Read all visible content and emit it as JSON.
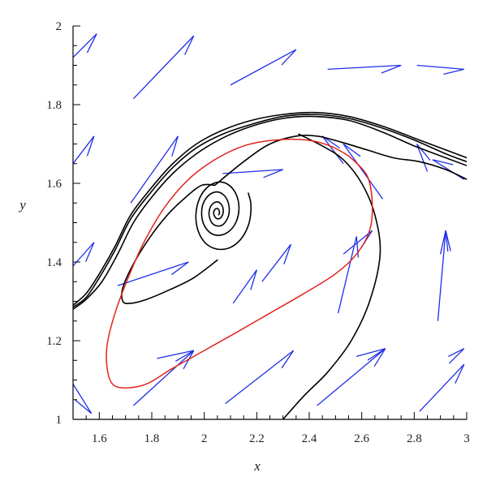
{
  "chart_data": {
    "type": "line",
    "title": "",
    "xlabel": "x",
    "ylabel": "y",
    "xlim": [
      1.5,
      3.0
    ],
    "ylim": [
      1.0,
      2.0
    ],
    "x_ticks": [
      "1.6",
      "1.8",
      "2",
      "2.2",
      "2.4",
      "2.6",
      "2.8",
      "3"
    ],
    "y_ticks": [
      "1",
      "1.2",
      "1.4",
      "1.6",
      "1.8",
      "2"
    ],
    "grid": false,
    "legend": "none",
    "colors": {
      "axis": "#000000",
      "trajectory": "#000000",
      "limit_cycle": "#e0241b",
      "vector_field": "#1f2ee8"
    },
    "series": [
      {
        "role": "trajectory",
        "points": [
          [
            1.5,
            1.29
          ],
          [
            1.55,
            1.32
          ],
          [
            1.6,
            1.37
          ],
          [
            1.66,
            1.44
          ],
          [
            1.72,
            1.52
          ],
          [
            1.8,
            1.59
          ],
          [
            1.88,
            1.65
          ],
          [
            1.97,
            1.7
          ],
          [
            2.07,
            1.735
          ],
          [
            2.18,
            1.76
          ],
          [
            2.3,
            1.775
          ],
          [
            2.42,
            1.78
          ],
          [
            2.55,
            1.77
          ],
          [
            2.68,
            1.745
          ],
          [
            2.8,
            1.715
          ],
          [
            2.92,
            1.685
          ],
          [
            3.0,
            1.665
          ]
        ]
      },
      {
        "role": "trajectory",
        "points": [
          [
            1.5,
            1.285
          ],
          [
            1.55,
            1.31
          ],
          [
            1.6,
            1.36
          ],
          [
            1.66,
            1.43
          ],
          [
            1.72,
            1.51
          ],
          [
            1.8,
            1.58
          ],
          [
            1.88,
            1.64
          ],
          [
            1.97,
            1.69
          ],
          [
            2.07,
            1.725
          ],
          [
            2.18,
            1.75
          ],
          [
            2.3,
            1.77
          ],
          [
            2.42,
            1.775
          ],
          [
            2.55,
            1.765
          ],
          [
            2.68,
            1.74
          ],
          [
            2.8,
            1.71
          ],
          [
            2.92,
            1.675
          ],
          [
            3.0,
            1.655
          ]
        ]
      },
      {
        "role": "trajectory",
        "points": [
          [
            1.5,
            1.28
          ],
          [
            1.55,
            1.305
          ],
          [
            1.61,
            1.35
          ],
          [
            1.67,
            1.42
          ],
          [
            1.73,
            1.5
          ],
          [
            1.8,
            1.565
          ],
          [
            1.88,
            1.625
          ],
          [
            1.97,
            1.675
          ],
          [
            2.07,
            1.715
          ],
          [
            2.18,
            1.745
          ],
          [
            2.3,
            1.765
          ],
          [
            2.42,
            1.77
          ],
          [
            2.55,
            1.76
          ],
          [
            2.68,
            1.73
          ],
          [
            2.8,
            1.695
          ],
          [
            2.92,
            1.665
          ],
          [
            3.0,
            1.645
          ]
        ]
      },
      {
        "role": "trajectory",
        "points": [
          [
            2.04,
            1.595
          ],
          [
            2.15,
            1.655
          ],
          [
            2.25,
            1.7
          ],
          [
            2.35,
            1.72
          ],
          [
            2.43,
            1.72
          ],
          [
            2.52,
            1.705
          ],
          [
            2.62,
            1.685
          ],
          [
            2.72,
            1.665
          ],
          [
            2.82,
            1.655
          ],
          [
            2.92,
            1.635
          ],
          [
            3.0,
            1.61
          ]
        ]
      },
      {
        "role": "trajectory",
        "points": [
          [
            2.3,
            1.0
          ],
          [
            2.38,
            1.06
          ],
          [
            2.47,
            1.12
          ],
          [
            2.56,
            1.2
          ],
          [
            2.63,
            1.3
          ],
          [
            2.67,
            1.42
          ],
          [
            2.65,
            1.52
          ],
          [
            2.6,
            1.6
          ],
          [
            2.53,
            1.66
          ],
          [
            2.45,
            1.695
          ],
          [
            2.36,
            1.725
          ]
        ]
      },
      {
        "role": "trajectory",
        "points": [
          [
            2.055,
            1.52
          ],
          [
            2.058,
            1.525
          ],
          [
            2.056,
            1.532
          ],
          [
            2.049,
            1.536
          ],
          [
            2.041,
            1.534
          ],
          [
            2.036,
            1.527
          ],
          [
            2.038,
            1.518
          ],
          [
            2.046,
            1.511
          ],
          [
            2.057,
            1.51
          ],
          [
            2.067,
            1.516
          ],
          [
            2.072,
            1.526
          ],
          [
            2.071,
            1.538
          ],
          [
            2.063,
            1.548
          ],
          [
            2.05,
            1.553
          ],
          [
            2.036,
            1.55
          ],
          [
            2.024,
            1.541
          ],
          [
            2.018,
            1.526
          ],
          [
            2.021,
            1.511
          ],
          [
            2.031,
            1.498
          ],
          [
            2.047,
            1.492
          ],
          [
            2.066,
            1.493
          ],
          [
            2.082,
            1.503
          ],
          [
            2.093,
            1.519
          ],
          [
            2.095,
            1.538
          ],
          [
            2.088,
            1.557
          ],
          [
            2.073,
            1.571
          ],
          [
            2.052,
            1.578
          ],
          [
            2.029,
            1.575
          ],
          [
            2.008,
            1.563
          ],
          [
            1.994,
            1.545
          ],
          [
            1.99,
            1.522
          ],
          [
            1.996,
            1.499
          ],
          [
            2.012,
            1.481
          ],
          [
            2.034,
            1.47
          ],
          [
            2.06,
            1.468
          ],
          [
            2.086,
            1.474
          ],
          [
            2.109,
            1.488
          ],
          [
            2.125,
            1.508
          ],
          [
            2.132,
            1.532
          ],
          [
            2.129,
            1.557
          ],
          [
            2.116,
            1.579
          ],
          [
            2.095,
            1.595
          ],
          [
            2.068,
            1.603
          ],
          [
            2.04,
            1.601
          ],
          [
            2.012,
            1.59
          ],
          [
            1.989,
            1.571
          ],
          [
            1.974,
            1.546
          ],
          [
            1.968,
            1.518
          ],
          [
            1.972,
            1.49
          ],
          [
            1.986,
            1.465
          ],
          [
            2.008,
            1.446
          ],
          [
            2.036,
            1.435
          ],
          [
            2.067,
            1.432
          ],
          [
            2.099,
            1.437
          ],
          [
            2.128,
            1.45
          ],
          [
            2.152,
            1.47
          ],
          [
            2.169,
            1.495
          ],
          [
            2.177,
            1.523
          ],
          [
            2.177,
            1.551
          ],
          [
            2.168,
            1.575
          ]
        ]
      },
      {
        "role": "trajectory",
        "points": [
          [
            2.05,
            1.405
          ],
          [
            1.96,
            1.36
          ],
          [
            1.87,
            1.33
          ],
          [
            1.78,
            1.305
          ],
          [
            1.72,
            1.295
          ],
          [
            1.69,
            1.3
          ],
          [
            1.69,
            1.335
          ],
          [
            1.73,
            1.395
          ],
          [
            1.79,
            1.46
          ],
          [
            1.86,
            1.52
          ],
          [
            1.93,
            1.565
          ],
          [
            1.99,
            1.595
          ],
          [
            2.04,
            1.595
          ]
        ]
      },
      {
        "role": "limit_cycle",
        "points": [
          [
            2.55,
            1.67
          ],
          [
            2.62,
            1.62
          ],
          [
            2.64,
            1.55
          ],
          [
            2.63,
            1.48
          ],
          [
            2.58,
            1.42
          ],
          [
            2.5,
            1.37
          ],
          [
            2.38,
            1.32
          ],
          [
            2.25,
            1.27
          ],
          [
            2.12,
            1.22
          ],
          [
            2.0,
            1.175
          ],
          [
            1.88,
            1.13
          ],
          [
            1.78,
            1.09
          ],
          [
            1.7,
            1.08
          ],
          [
            1.65,
            1.09
          ],
          [
            1.63,
            1.13
          ],
          [
            1.63,
            1.19
          ],
          [
            1.66,
            1.27
          ],
          [
            1.71,
            1.36
          ],
          [
            1.77,
            1.45
          ],
          [
            1.85,
            1.54
          ],
          [
            1.94,
            1.61
          ],
          [
            2.04,
            1.66
          ],
          [
            2.15,
            1.695
          ],
          [
            2.27,
            1.71
          ],
          [
            2.39,
            1.71
          ],
          [
            2.48,
            1.695
          ],
          [
            2.55,
            1.67
          ]
        ]
      }
    ],
    "vector_field": [
      {
        "from": [
          1.5,
          1.92
        ],
        "to": [
          1.59,
          1.98
        ]
      },
      {
        "from": [
          1.73,
          1.815
        ],
        "to": [
          1.96,
          1.975
        ]
      },
      {
        "from": [
          2.1,
          1.85
        ],
        "to": [
          2.35,
          1.94
        ]
      },
      {
        "from": [
          2.47,
          1.89
        ],
        "to": [
          2.75,
          1.9
        ]
      },
      {
        "from": [
          2.81,
          1.9
        ],
        "to": [
          2.99,
          1.89
        ]
      },
      {
        "from": [
          1.5,
          1.65
        ],
        "to": [
          1.58,
          1.72
        ]
      },
      {
        "from": [
          1.72,
          1.55
        ],
        "to": [
          1.9,
          1.72
        ]
      },
      {
        "from": [
          2.07,
          1.625
        ],
        "to": [
          2.3,
          1.635
        ]
      },
      {
        "from": [
          2.53,
          1.65
        ],
        "to": [
          2.45,
          1.72
        ]
      },
      {
        "from": [
          2.68,
          1.56
        ],
        "to": [
          2.53,
          1.7
        ]
      },
      {
        "from": [
          2.85,
          1.63
        ],
        "to": [
          2.81,
          1.7
        ]
      },
      {
        "from": [
          2.99,
          1.61
        ],
        "to": [
          2.87,
          1.66
        ]
      },
      {
        "from": [
          1.5,
          1.39
        ],
        "to": [
          1.58,
          1.45
        ]
      },
      {
        "from": [
          1.67,
          1.34
        ],
        "to": [
          1.94,
          1.4
        ]
      },
      {
        "from": [
          2.11,
          1.295
        ],
        "to": [
          2.2,
          1.38
        ]
      },
      {
        "from": [
          2.22,
          1.35
        ],
        "to": [
          2.33,
          1.445
        ]
      },
      {
        "from": [
          2.51,
          1.27
        ],
        "to": [
          2.58,
          1.465
        ]
      },
      {
        "from": [
          2.53,
          1.42
        ],
        "to": [
          2.64,
          1.48
        ]
      },
      {
        "from": [
          2.89,
          1.25
        ],
        "to": [
          2.92,
          1.48
        ]
      },
      {
        "from": [
          2.9,
          1.42
        ],
        "to": [
          2.92,
          1.48
        ]
      },
      {
        "from": [
          1.5,
          1.09
        ],
        "to": [
          1.57,
          1.015
        ]
      },
      {
        "from": [
          1.73,
          1.035
        ],
        "to": [
          1.96,
          1.175
        ]
      },
      {
        "from": [
          1.82,
          1.155
        ],
        "to": [
          1.96,
          1.175
        ]
      },
      {
        "from": [
          2.08,
          1.04
        ],
        "to": [
          2.34,
          1.175
        ]
      },
      {
        "from": [
          2.43,
          1.035
        ],
        "to": [
          2.69,
          1.18
        ]
      },
      {
        "from": [
          2.58,
          1.16
        ],
        "to": [
          2.69,
          1.18
        ]
      },
      {
        "from": [
          2.82,
          1.02
        ],
        "to": [
          2.99,
          1.14
        ]
      },
      {
        "from": [
          2.93,
          1.16
        ],
        "to": [
          2.99,
          1.18
        ]
      }
    ]
  }
}
